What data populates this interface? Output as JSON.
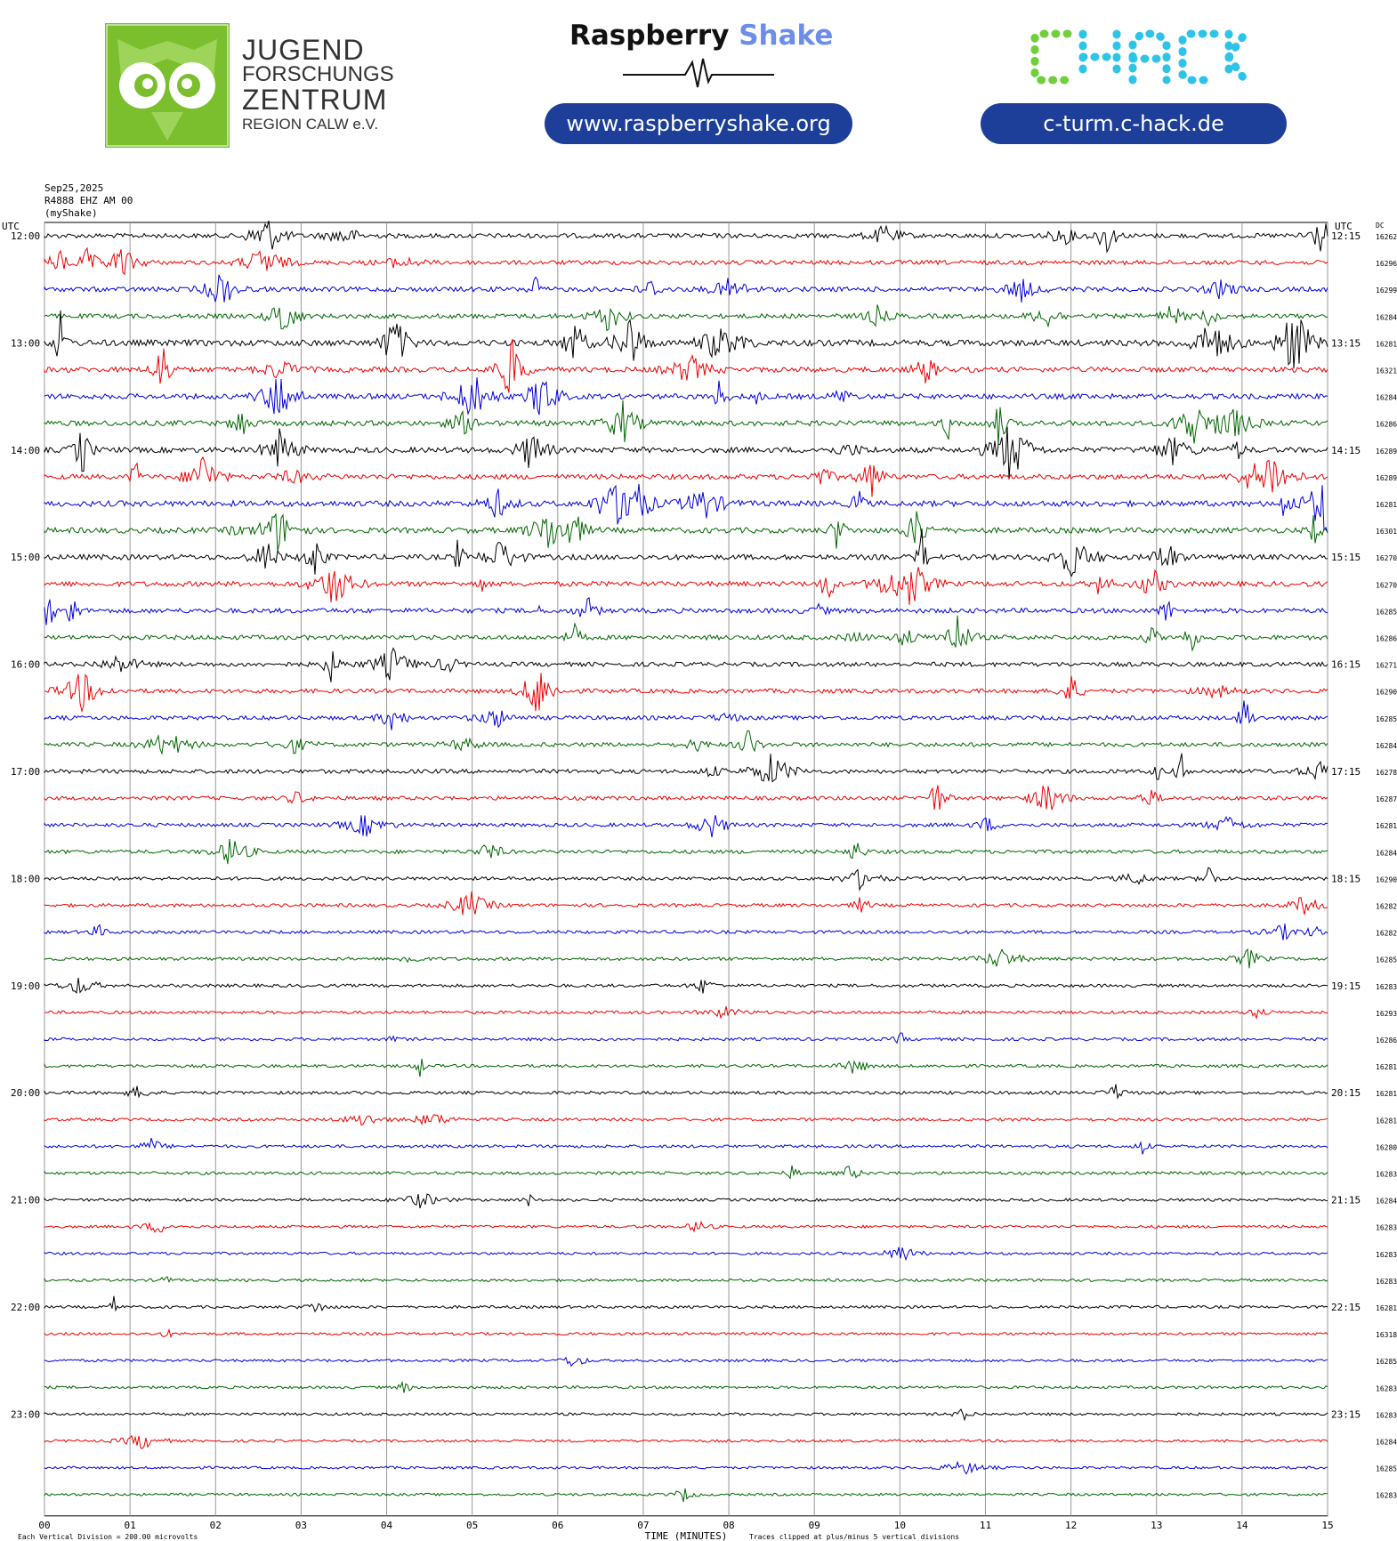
{
  "header": {
    "jfz_line1": "JUGEND",
    "jfz_line2": "FORSCHUNGS",
    "jfz_line3": "ZENTRUM",
    "jfz_line4": "REGION CALW e.V.",
    "rs_title_a": "Raspberry",
    "rs_title_b": "Shake",
    "rs_url": "www.raspberryshake.org",
    "chack_logo": "CHACK",
    "chack_url": "c-turm.c-hack.de",
    "colors": {
      "jfz_green": "#7bbf2e",
      "pill_blue": "#1d3f9a",
      "rs_blue": "#6c8ee8",
      "chack_green": "#6fcf3c",
      "chack_cyan": "#2ec4e8"
    }
  },
  "chart_data": {
    "type": "line",
    "title": "",
    "date": "Sep25,2025",
    "station": "R4888 EHZ AM 00",
    "source": "(myShake)",
    "left_axis_label": "UTC",
    "right_axis_label": "UTC",
    "dc_label": "DC",
    "xlabel": "TIME (MINUTES)",
    "x_ticks": [
      "00",
      "01",
      "02",
      "03",
      "04",
      "05",
      "06",
      "07",
      "08",
      "09",
      "10",
      "11",
      "12",
      "13",
      "14",
      "15"
    ],
    "xlim": [
      0,
      15
    ],
    "grid": true,
    "left_hours": [
      "12:00",
      "13:00",
      "14:00",
      "15:00",
      "16:00",
      "17:00",
      "18:00",
      "19:00",
      "20:00",
      "21:00",
      "22:00",
      "23:00"
    ],
    "right_hours": [
      "12:15",
      "13:15",
      "14:15",
      "15:15",
      "16:15",
      "17:15",
      "18:15",
      "19:15",
      "20:15",
      "21:15",
      "22:15",
      "23:15"
    ],
    "trace_colors": [
      "#000000",
      "#ee0000",
      "#0000dd",
      "#006600"
    ],
    "dc_offsets": [
      "16262",
      "16296",
      "16299",
      "16284",
      "16281",
      "16321",
      "16284",
      "16286",
      "16289",
      "16289",
      "16281",
      "16301",
      "16270",
      "16270",
      "16285",
      "16286",
      "16271",
      "16290",
      "16285",
      "16284",
      "16278",
      "16287",
      "16281",
      "16284",
      "16290",
      "16282",
      "16282",
      "16285",
      "16283",
      "16293",
      "16286",
      "16281",
      "16281",
      "16281",
      "16280",
      "16283",
      "16284",
      "16283",
      "16283",
      "16283",
      "16281",
      "16318",
      "16285",
      "16283",
      "16283",
      "16284",
      "16285",
      "16283"
    ],
    "activity": [
      0.55,
      0.5,
      0.6,
      0.55,
      0.9,
      0.7,
      0.7,
      0.7,
      0.75,
      0.65,
      0.8,
      0.75,
      0.7,
      0.65,
      0.6,
      0.55,
      0.5,
      0.5,
      0.45,
      0.45,
      0.45,
      0.4,
      0.35,
      0.35,
      0.3,
      0.28,
      0.25,
      0.25,
      0.22,
      0.22,
      0.2,
      0.2,
      0.22,
      0.2,
      0.2,
      0.2,
      0.15,
      0.15,
      0.12,
      0.12,
      0.15,
      0.12,
      0.12,
      0.12,
      0.12,
      0.1,
      0.1,
      0.1
    ],
    "footer_left": "Each Vertical Division =  200.00 microvolts",
    "footer_right": "Traces clipped at plus/minus 5 vertical divisions"
  }
}
